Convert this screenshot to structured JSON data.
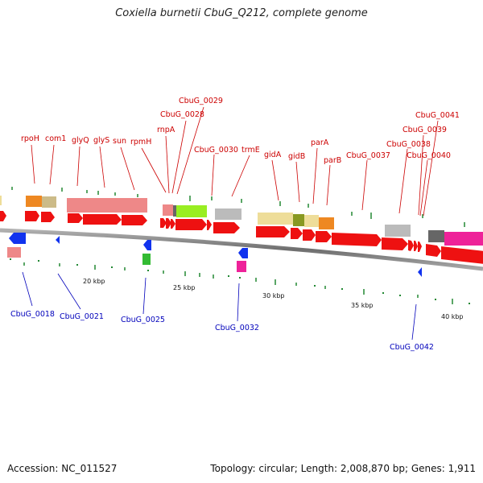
{
  "title": "Coxiella burnetii CbuG_Q212, complete genome",
  "footer": {
    "accession": "Accession: NC_011527",
    "summary": "Topology: circular; Length: 2,008,870 bp; Genes: 1,911"
  },
  "colors": {
    "cds": "#ee1111",
    "backbone": "#888888",
    "top_label": "#cc0000",
    "bottom_label": "#0000bb",
    "blue_feature": "#1133ee",
    "green_tick": "#228833"
  },
  "scale": {
    "ticks": [
      "20 kbp",
      "25 kbp",
      "30 kbp",
      "35 kbp",
      "40 kbp"
    ]
  },
  "top_labels": [
    "rpoH",
    "com1",
    "glyQ",
    "glyS",
    "sun",
    "rpmH",
    "rnpA",
    "CbuG_0029",
    "CbuG_0028",
    "CbuG_0030",
    "trmE",
    "gidA",
    "gidB",
    "parA",
    "parB",
    "CbuG_0037",
    "CbuG_0041",
    "CbuG_0039",
    "CbuG_0038",
    "CbuG_0040"
  ],
  "bottom_labels": [
    "CbuG_0018",
    "CbuG_0021",
    "CbuG_0025",
    "CbuG_0032",
    "CbuG_0042"
  ]
}
